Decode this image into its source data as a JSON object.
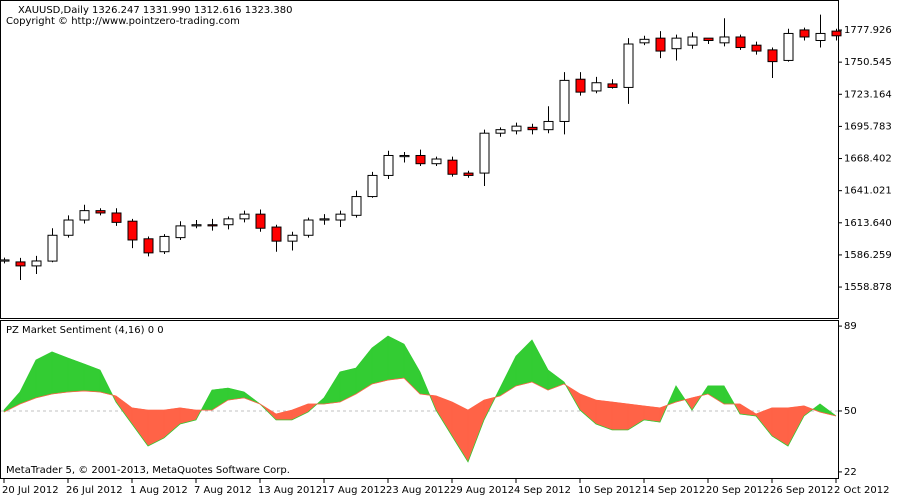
{
  "chart_data": [
    {
      "type": "candlestick",
      "title": "XAUUSD,Daily  1326.247 1331.990 1312.616 1323.380",
      "subtitle": "Copyright © http://www.pointzero-trading.com",
      "categories": [
        "20 Jul 2012",
        null,
        null,
        null,
        "26 Jul 2012",
        null,
        null,
        null,
        "1 Aug 2012",
        null,
        null,
        null,
        "7 Aug 2012",
        null,
        null,
        null,
        "13 Aug 2012",
        null,
        null,
        null,
        "17 Aug 2012",
        null,
        null,
        null,
        "23 Aug 2012",
        null,
        null,
        null,
        "29 Aug 2012",
        null,
        null,
        null,
        "4 Sep 2012",
        null,
        null,
        null,
        "10 Sep 2012",
        null,
        null,
        null,
        "14 Sep 2012",
        null,
        null,
        null,
        "20 Sep 2012",
        null,
        null,
        null,
        "26 Sep 2012",
        null,
        null,
        null,
        "2 Oct 2012"
      ],
      "open": [
        1581,
        1580.3,
        1576.9,
        1581,
        1603,
        1616,
        1624,
        1622,
        1615,
        1600,
        1589,
        1601,
        1611,
        1612,
        1612,
        1617,
        1621,
        1610,
        1598,
        1603,
        1616,
        1616,
        1620,
        1636,
        1654,
        1670,
        1671,
        1664,
        1667,
        1656,
        1656,
        1690,
        1692,
        1695,
        1693,
        1700,
        1736,
        1726,
        1732,
        1729,
        1767,
        1771,
        1762,
        1765,
        1771,
        1767,
        1772,
        1765,
        1761,
        1752,
        1778,
        1769,
        1777
      ],
      "high": [
        1584,
        1583.7,
        1585.4,
        1609,
        1620,
        1629,
        1626,
        1626,
        1617,
        1602,
        1604,
        1615,
        1616,
        1617,
        1619,
        1624,
        1625,
        1612,
        1606,
        1618,
        1621,
        1624,
        1641,
        1657,
        1675,
        1674,
        1676,
        1670,
        1670,
        1658,
        1693,
        1695,
        1699,
        1698,
        1713,
        1742,
        1742,
        1738,
        1736,
        1771,
        1773,
        1777,
        1774,
        1776,
        1771,
        1788,
        1774,
        1768,
        1763,
        1779,
        1780,
        1791,
        1779
      ],
      "low": [
        1579,
        1564.9,
        1570,
        1580,
        1601,
        1613,
        1620,
        1611,
        1592,
        1585,
        1587,
        1599,
        1609,
        1607,
        1608,
        1614,
        1606,
        1589,
        1590,
        1601,
        1612,
        1610,
        1618,
        1635,
        1651,
        1665,
        1662,
        1662,
        1653,
        1652,
        1645,
        1687,
        1689,
        1689,
        1690,
        1689,
        1722,
        1724,
        1728,
        1715,
        1765,
        1754,
        1752,
        1762,
        1766,
        1764,
        1761,
        1757,
        1737,
        1751,
        1769,
        1763,
        1769
      ],
      "close": [
        1582,
        1576.9,
        1581.1,
        1603,
        1616,
        1624,
        1622,
        1614,
        1599,
        1588,
        1602,
        1611,
        1612,
        1611,
        1617,
        1621,
        1609,
        1598,
        1603,
        1616,
        1617,
        1621,
        1636,
        1654,
        1671,
        1671,
        1664,
        1668,
        1655,
        1654,
        1690,
        1693,
        1696,
        1693,
        1700,
        1735,
        1725,
        1733,
        1729,
        1766,
        1770,
        1760,
        1771,
        1772,
        1769,
        1772,
        1763,
        1760,
        1751,
        1775,
        1772,
        1775,
        1773
      ],
      "up_color": "#ffffff",
      "down_color": "#ff0000",
      "ylim": [
        1532.5,
        1800.1
      ],
      "yticks": [
        1558.878,
        1586.259,
        {
          "value": 1613.64,
          "label": "1613.640"
        },
        1641.021,
        1668.402,
        1695.783,
        1723.164,
        1750.545,
        1777.926
      ]
    },
    {
      "type": "sentiment",
      "title": "PZ Market Sentiment (4,16) 0 0",
      "footer": "MetaTrader 5, © 2001-2013, MetaQuotes Software Corp.",
      "series": [
        {
          "color": "#33cc33",
          "values": [
            50.4,
            58.7,
            73.4,
            77.1,
            74.3,
            71.6,
            68.8,
            54.1,
            44.0,
            33.9,
            37.6,
            44.0,
            45.9,
            59.6,
            60.5,
            58.7,
            53.2,
            45.9,
            45.9,
            49.5,
            56.0,
            67.9,
            69.7,
            78.9,
            84.4,
            80.7,
            67.9,
            50.4,
            38.5,
            26.6,
            45.9,
            60.5,
            75.2,
            82.6,
            68.8,
            63.3,
            50.4,
            44.0,
            41.3,
            41.3,
            45.9,
            44.9,
            61.5,
            50.4,
            61.5,
            61.5,
            48.6,
            47.7,
            38.5,
            33.9,
            47.7,
            53.2,
            47.7
          ]
        },
        {
          "color": "#ff6347",
          "values": [
            49.5,
            53.2,
            56.0,
            57.8,
            58.7,
            59.2,
            58.7,
            56.9,
            51.4,
            50.4,
            50.4,
            51.4,
            50.4,
            50.4,
            55.0,
            56.0,
            53.2,
            48.6,
            50.4,
            53.2,
            53.2,
            54.1,
            57.8,
            62.4,
            64.2,
            65.1,
            57.8,
            56.9,
            54.1,
            50.4,
            55.0,
            56.9,
            61.5,
            63.3,
            59.6,
            62.4,
            57.8,
            55.0,
            54.1,
            53.2,
            52.3,
            51.4,
            54.1,
            56.0,
            57.8,
            53.2,
            53.2,
            48.6,
            51.4,
            51.4,
            52.3,
            49.5,
            47.7
          ]
        }
      ],
      "levels": [
        50
      ],
      "ylim": [
        19.2,
        91.8
      ],
      "yticks": [
        89,
        50,
        22
      ]
    }
  ]
}
